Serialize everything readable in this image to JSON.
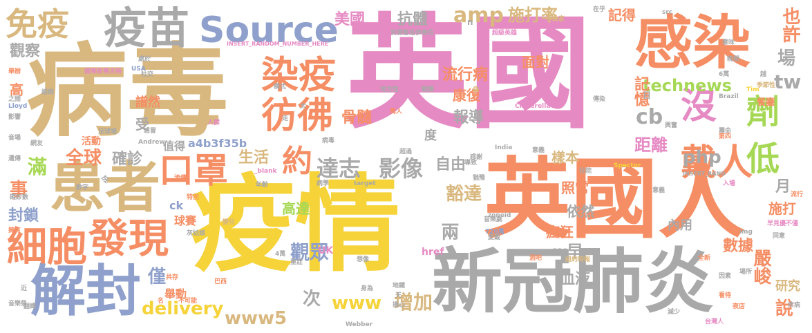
{
  "palette": {
    "pink": "#e68ac3",
    "tan": "#d9b87f",
    "orange": "#f58e64",
    "gray": "#a9a9a9",
    "yellow": "#f5d339",
    "blue": "#8ea0cb",
    "green": "#a6d855"
  },
  "words": [
    {
      "text": "英國",
      "color": "pink"
    },
    {
      "text": "病毒",
      "color": "tan"
    },
    {
      "text": "疫情",
      "color": "yellow"
    },
    {
      "text": "英國人",
      "color": "orange"
    },
    {
      "text": "新冠肺炎",
      "color": "gray"
    },
    {
      "text": "感染",
      "color": "orange"
    },
    {
      "text": "疫苗",
      "color": "gray"
    },
    {
      "text": "Source",
      "color": "blue"
    },
    {
      "text": "免疫",
      "color": "tan"
    },
    {
      "text": "患者",
      "color": "tan"
    },
    {
      "text": "解封",
      "color": "blue"
    },
    {
      "text": "細胞",
      "color": "orange"
    },
    {
      "text": "發現",
      "color": "orange"
    },
    {
      "text": "口罩",
      "color": "orange"
    },
    {
      "text": "染疫",
      "color": "orange"
    },
    {
      "text": "彷彿",
      "color": "orange"
    },
    {
      "text": "約",
      "color": "orange"
    },
    {
      "text": "沒",
      "color": "pink"
    },
    {
      "text": "劑",
      "color": "green"
    },
    {
      "text": "低",
      "color": "green"
    },
    {
      "text": "戴人",
      "color": "orange"
    },
    {
      "text": "amp",
      "color": "tan"
    },
    {
      "text": "美國",
      "color": "pink"
    },
    {
      "text": "抗體",
      "color": "gray"
    },
    {
      "text": "施打率",
      "color": "tan"
    },
    {
      "text": "記得",
      "color": "orange"
    },
    {
      "text": "也許",
      "color": "orange"
    },
    {
      "text": "場",
      "color": "gray"
    },
    {
      "text": "tw",
      "color": "gray"
    },
    {
      "text": "technews",
      "color": "green"
    },
    {
      "text": "流行病",
      "color": "orange"
    },
    {
      "text": "面對",
      "color": "orange"
    },
    {
      "text": "康復",
      "color": "orange"
    },
    {
      "text": "記憶",
      "color": "orange"
    },
    {
      "text": "骨髓",
      "color": "orange"
    },
    {
      "text": "報導",
      "color": "gray"
    },
    {
      "text": "cb",
      "color": "gray"
    },
    {
      "text": "距離",
      "color": "pink"
    },
    {
      "text": "達志",
      "color": "gray"
    },
    {
      "text": "影像",
      "color": "gray"
    },
    {
      "text": "自由",
      "color": "gray"
    },
    {
      "text": "php",
      "color": "gray"
    },
    {
      "text": "樣本",
      "color": "tan"
    },
    {
      "text": "豁達",
      "color": "tan"
    },
    {
      "text": "照常",
      "color": "orange"
    },
    {
      "text": "月",
      "color": "gray"
    },
    {
      "text": "施打",
      "color": "orange"
    },
    {
      "text": "高達",
      "color": "green"
    },
    {
      "text": "依然",
      "color": "gray"
    },
    {
      "text": "內用",
      "color": "gray"
    },
    {
      "text": "數據",
      "color": "orange"
    },
    {
      "text": "嚴峻",
      "color": "orange"
    },
    {
      "text": "研究",
      "color": "tan"
    },
    {
      "text": "說",
      "color": "orange"
    },
    {
      "text": "瘋狂",
      "color": "orange"
    },
    {
      "text": "兩",
      "color": "gray"
    },
    {
      "text": "早",
      "color": "gray"
    },
    {
      "text": "血液",
      "color": "gray"
    },
    {
      "text": "觀眾",
      "color": "blue"
    },
    {
      "text": "次",
      "color": "gray"
    },
    {
      "text": "www",
      "color": "yellow"
    },
    {
      "text": "增加",
      "color": "tan"
    },
    {
      "text": "www5",
      "color": "tan"
    },
    {
      "text": "delivery",
      "color": "yellow"
    },
    {
      "text": "舉動",
      "color": "orange"
    },
    {
      "text": "全球",
      "color": "orange"
    },
    {
      "text": "確診",
      "color": "gray"
    },
    {
      "text": "生活",
      "color": "tan"
    },
    {
      "text": "a4b3f35b",
      "color": "blue"
    },
    {
      "text": "值得",
      "color": "gray"
    },
    {
      "text": "僅",
      "color": "blue"
    },
    {
      "text": "滿",
      "color": "green"
    },
    {
      "text": "事",
      "color": "orange"
    },
    {
      "text": "封鎖",
      "color": "blue"
    },
    {
      "text": "球賽",
      "color": "orange"
    },
    {
      "text": "ck",
      "color": "blue"
    },
    {
      "text": "觀察",
      "color": "gray"
    },
    {
      "text": "高",
      "color": "orange"
    },
    {
      "text": "譜然",
      "color": "orange"
    },
    {
      "text": "活動",
      "color": "orange"
    },
    {
      "text": "受",
      "color": "gray"
    },
    {
      "text": "度",
      "color": "gray"
    },
    {
      "text": "UK",
      "color": "pink"
    },
    {
      "text": "href",
      "color": "pink"
    },
    {
      "text": "target",
      "color": "gray"
    },
    {
      "text": "INSERT_RANDOM_NUMBER_HERE",
      "color": "pink"
    },
    {
      "text": "INSERT_RAND",
      "color": "gray"
    },
    {
      "text": "_blank",
      "color": "pink"
    },
    {
      "text": "Lloyd",
      "color": "blue"
    },
    {
      "text": "Andrew",
      "color": "gray"
    },
    {
      "text": "Cinderella",
      "color": "pink"
    },
    {
      "text": "Spector",
      "color": "yellow"
    },
    {
      "text": "Webber",
      "color": "gray"
    },
    {
      "text": "BBC",
      "color": "gray"
    },
    {
      "text": "Brazil",
      "color": "gray"
    },
    {
      "text": "India",
      "color": "gray"
    },
    {
      "text": "zoneid",
      "color": "gray"
    },
    {
      "text": "USA",
      "color": "blue"
    },
    {
      "text": "Tim",
      "color": "yellow"
    },
    {
      "text": "src",
      "color": "gray"
    },
    {
      "text": "img",
      "color": "gray"
    },
    {
      "text": "720萬",
      "color": "blue"
    },
    {
      "text": "6萬",
      "color": "gray"
    },
    {
      "text": "4萬",
      "color": "gray"
    },
    {
      "text": "台灣人",
      "color": "pink"
    },
    {
      "text": "早見優不僅",
      "color": "pink"
    },
    {
      "text": "紐約時報",
      "color": "tan"
    },
    {
      "text": "安德魯洛伊韋伯",
      "color": "gray"
    },
    {
      "text": "作曲家",
      "color": "tan"
    },
    {
      "text": "音樂劇",
      "color": "gray"
    },
    {
      "text": "超級英雄",
      "color": "pink"
    },
    {
      "text": "提琴斯蒂夫特",
      "color": "pink"
    },
    {
      "text": "地方性",
      "color": "gray"
    },
    {
      "text": "戰勝",
      "color": "gray"
    },
    {
      "text": "意味",
      "color": "gray"
    },
    {
      "text": "在乎",
      "color": "gray"
    },
    {
      "text": "餐廳",
      "color": "orange"
    },
    {
      "text": "季節性",
      "color": "tan"
    },
    {
      "text": "傳染",
      "color": "gray"
    },
    {
      "text": "人群",
      "color": "pink"
    },
    {
      "text": "足球場",
      "color": "gray"
    },
    {
      "text": "全新",
      "color": "orange"
    },
    {
      "text": "因素",
      "color": "gray"
    },
    {
      "text": "場所",
      "color": "gray"
    },
    {
      "text": "疾病",
      "color": "gray"
    },
    {
      "text": "夜店",
      "color": "orange"
    },
    {
      "text": "看待",
      "color": "orange"
    },
    {
      "text": "同意",
      "color": "gray"
    },
    {
      "text": "流行",
      "color": "orange"
    },
    {
      "text": "入場",
      "color": "pink"
    },
    {
      "text": "意義",
      "color": "gray"
    },
    {
      "text": "住院",
      "color": "gray"
    },
    {
      "text": "流傳",
      "color": "orange"
    },
    {
      "text": "印度",
      "color": "orange"
    },
    {
      "text": "酒吧",
      "color": "orange"
    },
    {
      "text": "地鐵",
      "color": "gray"
    },
    {
      "text": "擔心",
      "color": "gray"
    },
    {
      "text": "身為",
      "color": "gray"
    },
    {
      "text": "音樂祭",
      "color": "gray"
    },
    {
      "text": "感謝",
      "color": "gray"
    },
    {
      "text": "遺傳",
      "color": "gray"
    },
    {
      "text": "壽命",
      "color": "gray"
    },
    {
      "text": "萬人",
      "color": "orange"
    },
    {
      "text": "數字",
      "color": "gray"
    },
    {
      "text": "音場",
      "color": "gray"
    },
    {
      "text": "影響",
      "color": "gray"
    },
    {
      "text": "之間",
      "color": "gray"
    },
    {
      "text": "社交",
      "color": "gray"
    },
    {
      "text": "處於",
      "color": "gray"
    },
    {
      "text": "翻譯",
      "color": "gray"
    },
    {
      "text": "網友",
      "color": "gray"
    },
    {
      "text": "感冒",
      "color": "gray"
    },
    {
      "text": "變化",
      "color": "tan"
    },
    {
      "text": "想像",
      "color": "gray"
    },
    {
      "text": "當初",
      "color": "orange"
    },
    {
      "text": "愛戴",
      "color": "gray"
    },
    {
      "text": "猶豫",
      "color": "gray"
    },
    {
      "text": "確診數",
      "color": "gray"
    },
    {
      "text": "重症",
      "color": "gray"
    },
    {
      "text": "病毒",
      "color": "gray"
    },
    {
      "text": "年齡",
      "color": "gray"
    },
    {
      "text": "導致",
      "color": "gray"
    },
    {
      "text": "共存",
      "color": "orange"
    },
    {
      "text": "巴西",
      "color": "orange"
    },
    {
      "text": "名",
      "color": "orange"
    },
    {
      "text": "不可能",
      "color": "orange"
    },
    {
      "text": "近",
      "color": "gray"
    },
    {
      "text": "天",
      "color": "gray"
    },
    {
      "text": "令",
      "color": "gray"
    },
    {
      "text": "n",
      "color": "gray"
    },
    {
      "text": "a",
      "color": "tan"
    },
    {
      "text": "日",
      "color": "gray"
    },
    {
      "text": "特別",
      "color": "orange"
    },
    {
      "text": "第四",
      "color": "orange"
    },
    {
      "text": "興奮",
      "color": "gray"
    },
    {
      "text": "模式",
      "color": "gray"
    },
    {
      "text": "太",
      "color": "gray"
    },
    {
      "text": "走",
      "color": "gray"
    },
    {
      "text": "越",
      "color": "gray"
    },
    {
      "text": "晚間",
      "color": "gray"
    },
    {
      "text": "超過",
      "color": "gray"
    },
    {
      "text": "舉辦",
      "color": "orange"
    },
    {
      "text": "擁有",
      "color": "orange"
    },
    {
      "text": "灰姑娘",
      "color": "gray"
    },
    {
      "text": "意義",
      "color": "gray"
    },
    {
      "text": "病學",
      "color": "gray"
    },
    {
      "text": "減少",
      "color": "gray"
    },
    {
      "text": "諮詢",
      "color": "gray"
    }
  ]
}
